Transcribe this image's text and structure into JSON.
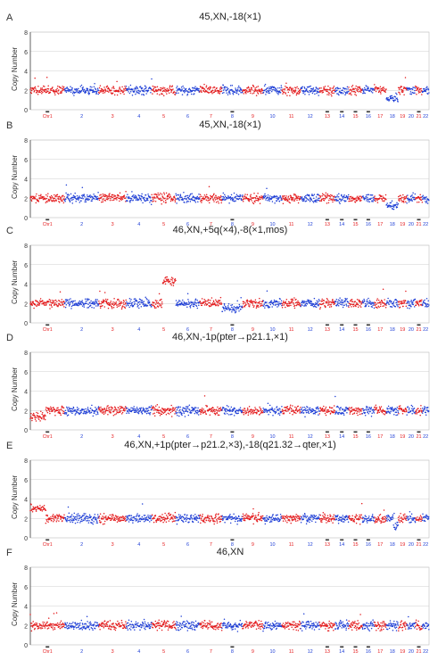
{
  "colors": {
    "odd": "#e41a1c",
    "even": "#1f3fd6",
    "grid": "#cfcfcf",
    "axis": "#444444"
  },
  "chromosomes": [
    "Chr1",
    "2",
    "3",
    "4",
    "5",
    "6",
    "7",
    "8",
    "9",
    "10",
    "11",
    "12",
    "13",
    "14",
    "15",
    "16",
    "17",
    "18",
    "19",
    "20",
    "21",
    "22"
  ],
  "chart_data": [
    {
      "type": "scatter",
      "panel": "A",
      "title": "45,XN,-18(×1)",
      "ylabel": "Copy Number",
      "ylim": [
        0,
        8
      ],
      "yticks": [
        0,
        2,
        4,
        6,
        8
      ],
      "baseline": 2,
      "segments": [
        {
          "chr": "18",
          "value": 1.2
        }
      ]
    },
    {
      "type": "scatter",
      "panel": "B",
      "title": "45,XN,-18(×1)",
      "ylabel": "Copy Number",
      "ylim": [
        0,
        8
      ],
      "yticks": [
        0,
        2,
        4,
        6,
        8
      ],
      "baseline": 2,
      "segments": [
        {
          "chr": "18",
          "value": 1.2
        }
      ]
    },
    {
      "type": "scatter",
      "panel": "C",
      "title": "46,XN,+5q(×4),-8(×1,mos)",
      "ylabel": "Copy Number",
      "ylim": [
        0,
        8
      ],
      "yticks": [
        0,
        2,
        4,
        6,
        8
      ],
      "baseline": 2,
      "segments": [
        {
          "chr": "5",
          "from": 0.45,
          "to": 1.0,
          "value": 4.3
        },
        {
          "chr": "8",
          "value": 1.5
        }
      ]
    },
    {
      "type": "scatter",
      "panel": "D",
      "title": "46,XN,-1p(pter→p21.1,×1)",
      "ylabel": "Copy Number",
      "ylim": [
        0,
        8
      ],
      "yticks": [
        0,
        2,
        4,
        6,
        8
      ],
      "baseline": 2,
      "segments": [
        {
          "chr": "Chr1",
          "from": 0.0,
          "to": 0.45,
          "value": 1.3
        }
      ]
    },
    {
      "type": "scatter",
      "panel": "E",
      "title": "46,XN,+1p(pter→p21.2,×3),-18(q21.32→qter,×1)",
      "ylabel": "Copy Number",
      "ylim": [
        0,
        8
      ],
      "yticks": [
        0,
        2,
        4,
        6,
        8
      ],
      "baseline": 2,
      "segments": [
        {
          "chr": "Chr1",
          "from": 0.0,
          "to": 0.45,
          "value": 3.0
        },
        {
          "chr": "18",
          "from": 0.6,
          "to": 1.0,
          "value": 1.2
        }
      ]
    },
    {
      "type": "scatter",
      "panel": "F",
      "title": "46,XN",
      "ylabel": "Copy Number",
      "ylim": [
        0,
        8
      ],
      "yticks": [
        0,
        2,
        4,
        6,
        8
      ],
      "baseline": 2,
      "segments": []
    }
  ]
}
